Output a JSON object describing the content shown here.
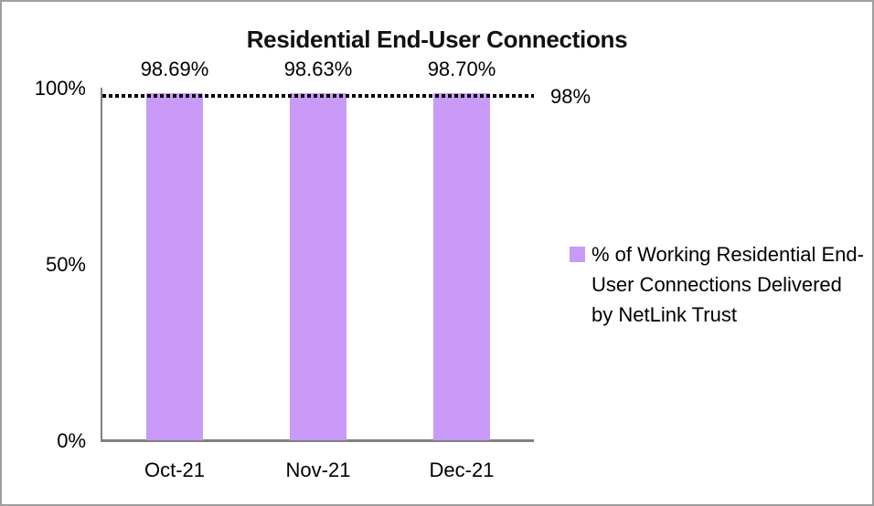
{
  "chart_data": {
    "type": "bar",
    "title": "Residential End-User Connections",
    "categories": [
      "Oct-21",
      "Nov-21",
      "Dec-21"
    ],
    "values": [
      98.69,
      98.63,
      98.7
    ],
    "value_labels": [
      "98.69%",
      "98.63%",
      "98.70%"
    ],
    "series": [
      {
        "name": "% of Working Residential End-User Connections Delivered by NetLink Trust",
        "values": [
          98.69,
          98.63,
          98.7
        ]
      }
    ],
    "ylim": [
      0,
      100
    ],
    "yticks": [
      {
        "value": 100,
        "label": "100%"
      },
      {
        "value": 50,
        "label": "50%"
      },
      {
        "value": 0,
        "label": "0%"
      }
    ],
    "target_line": {
      "value": 98,
      "label": "98%",
      "style": "dotted"
    },
    "legend_position": "right",
    "grid": false,
    "colors": {
      "bar": "#C99AF7",
      "axis": "#808080",
      "target": "#000000",
      "text": "#000000",
      "frame_border": "#9E9E9E"
    }
  },
  "legend": {
    "label": "% of Working Residential End-User Connections Delivered by NetLink Trust"
  },
  "target": {
    "label": "98%"
  }
}
